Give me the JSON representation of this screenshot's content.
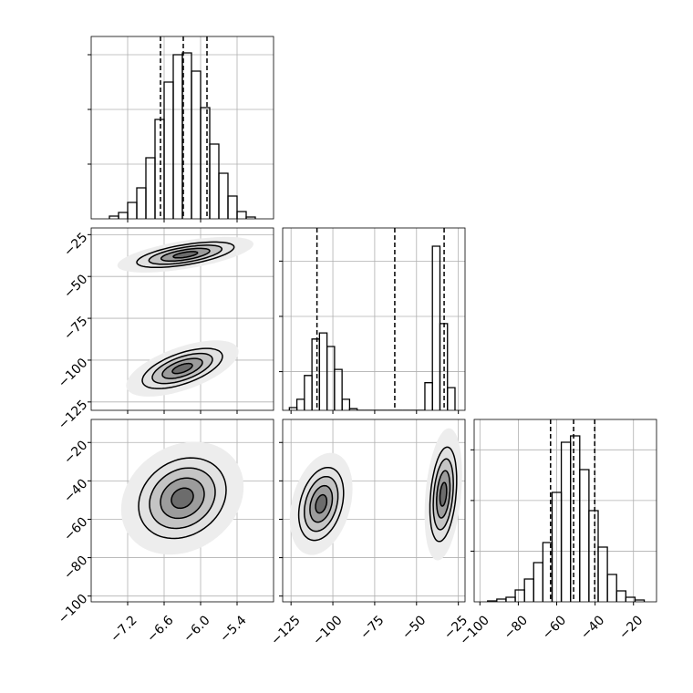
{
  "chart_data": {
    "type": "corner",
    "params": [
      {
        "lim": [
          -7.8,
          -4.8
        ],
        "ticks": [
          {
            "value": -7.2,
            "label": "−7.2"
          },
          {
            "value": -6.6,
            "label": "−6.6"
          },
          {
            "value": -6.0,
            "label": "−6.0"
          },
          {
            "value": -5.4,
            "label": "−5.4"
          }
        ]
      },
      {
        "lim": [
          -130,
          -21
        ],
        "ticks": [
          {
            "value": -125,
            "label": "−125"
          },
          {
            "value": -100,
            "label": "−100"
          },
          {
            "value": -75,
            "label": "−75"
          },
          {
            "value": -50,
            "label": "−50"
          },
          {
            "value": -25,
            "label": "−25"
          }
        ]
      },
      {
        "lim": [
          -103,
          -8
        ],
        "ticks": [
          {
            "value": -100,
            "label": "−100"
          },
          {
            "value": -80,
            "label": "−80"
          },
          {
            "value": -60,
            "label": "−60"
          },
          {
            "value": -40,
            "label": "−40"
          },
          {
            "value": -20,
            "label": "−20"
          }
        ]
      }
    ],
    "histograms": [
      {
        "bins": [
          -7.5,
          -7.35,
          -7.2,
          -7.05,
          -6.9,
          -6.75,
          -6.6,
          -6.45,
          -6.3,
          -6.15,
          -6.0,
          -5.85,
          -5.7,
          -5.55,
          -5.4,
          -5.25,
          -5.1
        ],
        "counts": [
          15,
          35,
          90,
          170,
          335,
          545,
          750,
          900,
          910,
          810,
          610,
          410,
          250,
          125,
          40,
          10
        ],
        "ylim": [
          0,
          1000
        ],
        "yticks": [
          300,
          600,
          900
        ],
        "quantiles": [
          -6.66,
          -6.285,
          -5.895
        ]
      },
      {
        "bins": [
          -126,
          -121.5,
          -117,
          -112.5,
          -108,
          -103.5,
          -99,
          -94.5,
          -90,
          -85.5,
          -81,
          -76.5,
          -72,
          -67.5,
          -63,
          -58.5,
          -54,
          -49.5,
          -45,
          -40.5,
          -36,
          -31.5,
          -27
        ],
        "counts": [
          50,
          200,
          630,
          1290,
          1400,
          1155,
          740,
          200,
          30,
          0,
          0,
          0,
          0,
          0,
          0,
          0,
          0,
          0,
          500,
          2970,
          1570,
          410
        ],
        "ylim": [
          0,
          3300
        ],
        "yticks": [
          700,
          1700,
          2700
        ],
        "quantiles": [
          -109.5,
          -63,
          -33.5
        ]
      },
      {
        "bins": [
          -96,
          -91.2,
          -86.4,
          -81.6,
          -76.8,
          -72,
          -67.2,
          -62.4,
          -57.6,
          -52.8,
          -48,
          -43.2,
          -38.4,
          -33.6,
          -28.8,
          -24,
          -19.2,
          -14.4
        ],
        "counts": [
          18,
          54,
          90,
          234,
          450,
          774,
          1170,
          2160,
          3150,
          3276,
          2610,
          1800,
          1080,
          540,
          216,
          90,
          36
        ],
        "ylim": [
          0,
          3600
        ],
        "yticks": [
          1000,
          2000,
          3000
        ],
        "quantiles": [
          -63.2,
          -51.2,
          -40.2
        ]
      }
    ],
    "levels": [
      0.5,
      1,
      1.5,
      2
    ],
    "panels": [
      {
        "row": 1,
        "col": 0,
        "blobs": [
          {
            "cx": -6.25,
            "cy": -37,
            "sx": 0.4,
            "sy": 3.8,
            "rho": 0.6
          },
          {
            "cx": -6.3,
            "cy": -105,
            "sx": 0.33,
            "sy": 6,
            "rho": 0.6
          }
        ]
      },
      {
        "row": 2,
        "col": 0,
        "blobs": [
          {
            "cx": -6.3,
            "cy": -49,
            "sx": 0.36,
            "sy": 10.5,
            "rho": 0.2
          }
        ]
      },
      {
        "row": 2,
        "col": 1,
        "blobs": [
          {
            "cx": -107,
            "cy": -52,
            "sx": 6.7,
            "sy": 9.5,
            "rho": 0.3
          },
          {
            "cx": -34,
            "cy": -47,
            "sx": 4,
            "sy": 12.3,
            "rho": 0.3
          }
        ]
      }
    ]
  }
}
